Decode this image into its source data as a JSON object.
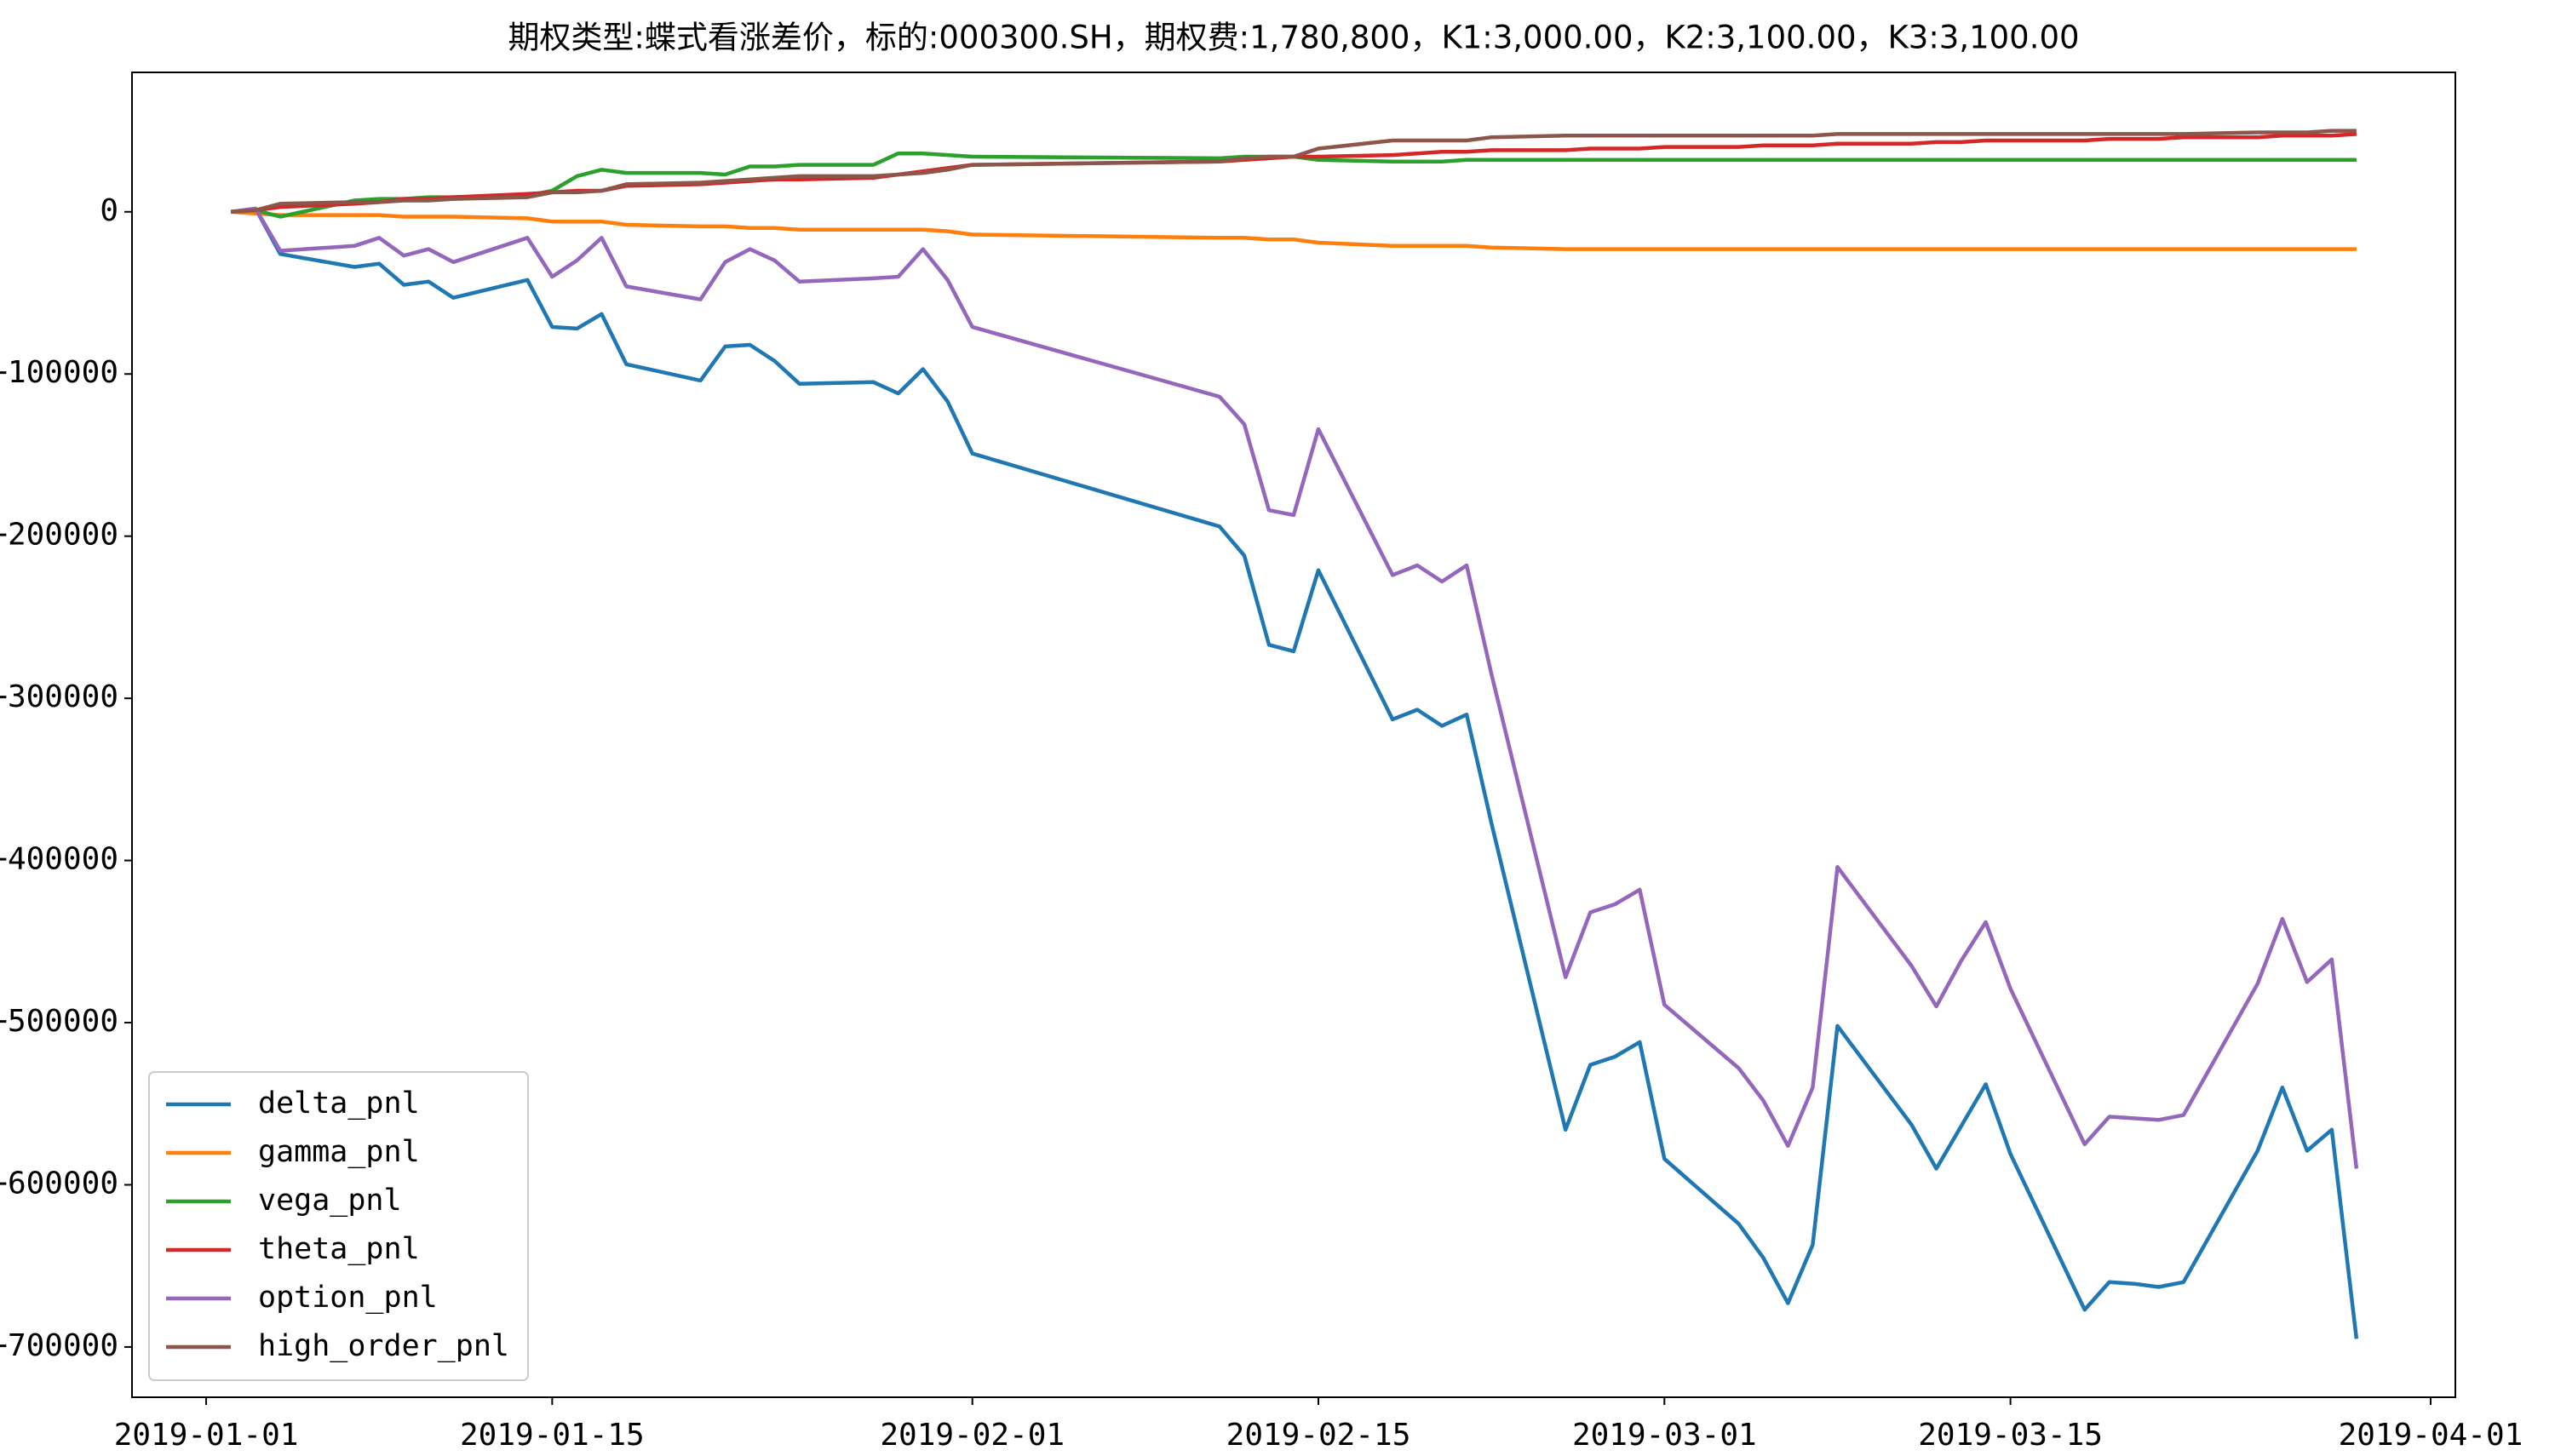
{
  "chart_data": {
    "type": "line",
    "title": "期权类型:蝶式看涨差价，标的:000300.SH，期权费:1,780,800，K1:3,000.00，K2:3,100.00，K3:3,100.00",
    "x": [
      "2019-01-02",
      "2019-01-03",
      "2019-01-04",
      "2019-01-07",
      "2019-01-08",
      "2019-01-09",
      "2019-01-10",
      "2019-01-11",
      "2019-01-14",
      "2019-01-15",
      "2019-01-16",
      "2019-01-17",
      "2019-01-18",
      "2019-01-21",
      "2019-01-22",
      "2019-01-23",
      "2019-01-24",
      "2019-01-25",
      "2019-01-28",
      "2019-01-29",
      "2019-01-30",
      "2019-01-31",
      "2019-02-01",
      "2019-02-11",
      "2019-02-12",
      "2019-02-13",
      "2019-02-14",
      "2019-02-15",
      "2019-02-18",
      "2019-02-19",
      "2019-02-20",
      "2019-02-21",
      "2019-02-22",
      "2019-02-25",
      "2019-02-26",
      "2019-02-27",
      "2019-02-28",
      "2019-03-01",
      "2019-03-04",
      "2019-03-05",
      "2019-03-06",
      "2019-03-07",
      "2019-03-08",
      "2019-03-11",
      "2019-03-12",
      "2019-03-13",
      "2019-03-14",
      "2019-03-15",
      "2019-03-18",
      "2019-03-19",
      "2019-03-20",
      "2019-03-21",
      "2019-03-22",
      "2019-03-25",
      "2019-03-26",
      "2019-03-27",
      "2019-03-28",
      "2019-03-29"
    ],
    "series": [
      {
        "name": "delta_pnl",
        "color": "#1f77b4",
        "values": [
          0,
          2000,
          -26000,
          -34000,
          -32000,
          -45000,
          -43000,
          -53000,
          -42000,
          -71000,
          -72000,
          -63000,
          -94000,
          -104000,
          -83000,
          -82000,
          -92000,
          -106000,
          -105000,
          -112000,
          -97000,
          -117000,
          -149000,
          -194000,
          -212000,
          -267000,
          -271000,
          -221000,
          -313000,
          -307000,
          -317000,
          -310000,
          -377000,
          -566000,
          -526000,
          -521000,
          -512000,
          -584000,
          -624000,
          -645000,
          -673000,
          -637000,
          -502000,
          -563000,
          -590000,
          -564000,
          -538000,
          -581000,
          -677000,
          -660000,
          -661000,
          -663000,
          -660000,
          -579000,
          -540000,
          -579000,
          -566000,
          -695000
        ]
      },
      {
        "name": "gamma_pnl",
        "color": "#ff7f0e",
        "values": [
          0,
          -1000,
          -2000,
          -2000,
          -2000,
          -3000,
          -3000,
          -3000,
          -4000,
          -6000,
          -6000,
          -6000,
          -8000,
          -9000,
          -9000,
          -10000,
          -10000,
          -11000,
          -11000,
          -11000,
          -11000,
          -12000,
          -14000,
          -16000,
          -16000,
          -17000,
          -17000,
          -19000,
          -21000,
          -21000,
          -21000,
          -21000,
          -22000,
          -23000,
          -23000,
          -23000,
          -23000,
          -23000,
          -23000,
          -23000,
          -23000,
          -23000,
          -23000,
          -23000,
          -23000,
          -23000,
          -23000,
          -23000,
          -23000,
          -23000,
          -23000,
          -23000,
          -23000,
          -23000,
          -23000,
          -23000,
          -23000,
          -23000
        ]
      },
      {
        "name": "vega_pnl",
        "color": "#2ca02c",
        "values": [
          0,
          1000,
          -3000,
          7000,
          8000,
          8000,
          9000,
          9000,
          10000,
          13000,
          22000,
          26000,
          24000,
          24000,
          23000,
          28000,
          28000,
          29000,
          29000,
          36000,
          36000,
          35000,
          34000,
          33000,
          34000,
          34000,
          34000,
          32000,
          31000,
          31000,
          31000,
          32000,
          32000,
          32000,
          32000,
          32000,
          32000,
          32000,
          32000,
          32000,
          32000,
          32000,
          32000,
          32000,
          32000,
          32000,
          32000,
          32000,
          32000,
          32000,
          32000,
          32000,
          32000,
          32000,
          32000,
          32000,
          32000,
          32000
        ]
      },
      {
        "name": "theta_pnl",
        "color": "#d62728",
        "values": [
          0,
          1000,
          3000,
          5000,
          6000,
          8000,
          8000,
          9000,
          11000,
          12000,
          13000,
          13000,
          16000,
          17000,
          18000,
          19000,
          20000,
          20000,
          21000,
          23000,
          25000,
          27000,
          29000,
          31000,
          32000,
          33000,
          34000,
          34000,
          35000,
          36000,
          37000,
          37000,
          38000,
          38000,
          39000,
          39000,
          39000,
          40000,
          40000,
          41000,
          41000,
          41000,
          42000,
          42000,
          43000,
          43000,
          44000,
          44000,
          44000,
          45000,
          45000,
          45000,
          46000,
          46000,
          47000,
          47000,
          47000,
          48000
        ]
      },
      {
        "name": "option_pnl",
        "color": "#9467bd",
        "values": [
          0,
          2000,
          -24000,
          -21000,
          -16000,
          -27000,
          -23000,
          -31000,
          -16000,
          -40000,
          -30000,
          -16000,
          -46000,
          -54000,
          -31000,
          -23000,
          -30000,
          -43000,
          -41000,
          -40000,
          -23000,
          -42000,
          -71000,
          -114000,
          -131000,
          -184000,
          -187000,
          -134000,
          -224000,
          -218000,
          -228000,
          -218000,
          -285000,
          -472000,
          -432000,
          -427000,
          -418000,
          -489000,
          -528000,
          -548000,
          -576000,
          -540000,
          -404000,
          -465000,
          -490000,
          -462000,
          -438000,
          -479000,
          -575000,
          -558000,
          -559000,
          -560000,
          -557000,
          -476000,
          -436000,
          -475000,
          -461000,
          -590000
        ]
      },
      {
        "name": "high_order_pnl",
        "color": "#8c564b",
        "values": [
          0,
          1000,
          5000,
          6000,
          6000,
          7000,
          7000,
          8000,
          9000,
          12000,
          12000,
          13000,
          17000,
          18000,
          19000,
          20000,
          21000,
          22000,
          22000,
          23000,
          24000,
          26000,
          29000,
          31000,
          33000,
          34000,
          34000,
          39000,
          44000,
          44000,
          44000,
          44000,
          46000,
          47000,
          47000,
          47000,
          47000,
          47000,
          47000,
          47000,
          47000,
          47000,
          48000,
          48000,
          48000,
          48000,
          48000,
          48000,
          48000,
          48000,
          48000,
          48000,
          48000,
          49000,
          49000,
          49000,
          50000,
          50000
        ]
      }
    ],
    "xlim": [
      "2018-12-29",
      "2019-04-02"
    ],
    "xticks": [
      "2019-01-01",
      "2019-01-15",
      "2019-02-01",
      "2019-02-15",
      "2019-03-01",
      "2019-03-15",
      "2019-04-01"
    ],
    "ylim": [
      -731000,
      86000
    ],
    "yticks": [
      {
        "value": -700000,
        "label": "−700000"
      },
      {
        "value": -600000,
        "label": "−600000"
      },
      {
        "value": -500000,
        "label": "−500000"
      },
      {
        "value": -400000,
        "label": "−400000"
      },
      {
        "value": -300000,
        "label": "−300000"
      },
      {
        "value": -200000,
        "label": "−200000"
      },
      {
        "value": -100000,
        "label": "−100000"
      },
      0
    ],
    "legend": "lower left"
  }
}
